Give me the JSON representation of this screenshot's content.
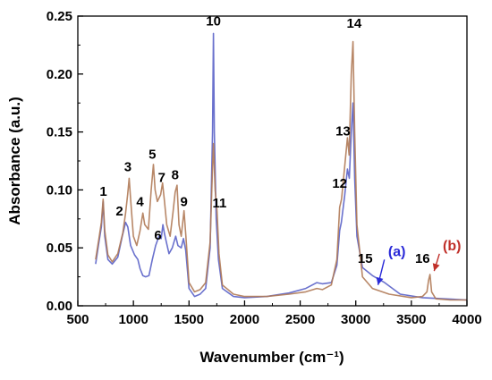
{
  "chart_data": {
    "type": "line",
    "xlabel": "Wavenumber (cm⁻¹)",
    "ylabel": "Absorbance (a.u.)",
    "xlim": [
      500,
      4000
    ],
    "ylim": [
      0,
      0.25
    ],
    "x_ticks": [
      500,
      1000,
      1500,
      2000,
      2500,
      3000,
      3500,
      4000
    ],
    "y_ticks": [
      0.0,
      0.05,
      0.1,
      0.15,
      0.2,
      0.25
    ],
    "x_tick_labels": [
      "500",
      "1000",
      "1500",
      "2000",
      "2500",
      "3000",
      "3500",
      "4000"
    ],
    "y_tick_labels": [
      "0.00",
      "0.05",
      "0.10",
      "0.15",
      "0.20",
      "0.25"
    ],
    "grid": false,
    "series": [
      {
        "name": "(a)",
        "color": "#5a62c8",
        "label_color": "#2a2ad8",
        "points": [
          [
            660,
            0.036
          ],
          [
            690,
            0.055
          ],
          [
            712,
            0.068
          ],
          [
            728,
            0.09
          ],
          [
            742,
            0.06
          ],
          [
            770,
            0.04
          ],
          [
            810,
            0.036
          ],
          [
            860,
            0.042
          ],
          [
            900,
            0.06
          ],
          [
            930,
            0.072
          ],
          [
            950,
            0.068
          ],
          [
            975,
            0.052
          ],
          [
            1010,
            0.044
          ],
          [
            1040,
            0.04
          ],
          [
            1060,
            0.032
          ],
          [
            1085,
            0.026
          ],
          [
            1110,
            0.025
          ],
          [
            1140,
            0.026
          ],
          [
            1170,
            0.04
          ],
          [
            1200,
            0.052
          ],
          [
            1230,
            0.06
          ],
          [
            1250,
            0.058
          ],
          [
            1265,
            0.07
          ],
          [
            1280,
            0.062
          ],
          [
            1320,
            0.045
          ],
          [
            1350,
            0.05
          ],
          [
            1380,
            0.06
          ],
          [
            1400,
            0.052
          ],
          [
            1430,
            0.05
          ],
          [
            1450,
            0.058
          ],
          [
            1470,
            0.048
          ],
          [
            1500,
            0.015
          ],
          [
            1550,
            0.008
          ],
          [
            1600,
            0.01
          ],
          [
            1650,
            0.015
          ],
          [
            1690,
            0.05
          ],
          [
            1712,
            0.15
          ],
          [
            1720,
            0.235
          ],
          [
            1728,
            0.15
          ],
          [
            1745,
            0.075
          ],
          [
            1765,
            0.04
          ],
          [
            1800,
            0.015
          ],
          [
            1900,
            0.008
          ],
          [
            2000,
            0.007
          ],
          [
            2200,
            0.008
          ],
          [
            2400,
            0.011
          ],
          [
            2550,
            0.015
          ],
          [
            2650,
            0.02
          ],
          [
            2700,
            0.019
          ],
          [
            2780,
            0.02
          ],
          [
            2830,
            0.035
          ],
          [
            2855,
            0.065
          ],
          [
            2870,
            0.072
          ],
          [
            2900,
            0.095
          ],
          [
            2925,
            0.118
          ],
          [
            2942,
            0.11
          ],
          [
            2960,
            0.15
          ],
          [
            2975,
            0.175
          ],
          [
            2990,
            0.11
          ],
          [
            3010,
            0.06
          ],
          [
            3060,
            0.033
          ],
          [
            3150,
            0.026
          ],
          [
            3260,
            0.02
          ],
          [
            3400,
            0.01
          ],
          [
            3600,
            0.007
          ],
          [
            3800,
            0.006
          ],
          [
            4000,
            0.005
          ]
        ]
      },
      {
        "name": "(b)",
        "color": "#b07a56",
        "label_color": "#c0302a",
        "points": [
          [
            660,
            0.04
          ],
          [
            690,
            0.058
          ],
          [
            712,
            0.072
          ],
          [
            728,
            0.092
          ],
          [
            742,
            0.065
          ],
          [
            770,
            0.044
          ],
          [
            810,
            0.038
          ],
          [
            860,
            0.045
          ],
          [
            905,
            0.063
          ],
          [
            930,
            0.08
          ],
          [
            948,
            0.096
          ],
          [
            962,
            0.11
          ],
          [
            978,
            0.088
          ],
          [
            1000,
            0.06
          ],
          [
            1030,
            0.052
          ],
          [
            1060,
            0.065
          ],
          [
            1085,
            0.08
          ],
          [
            1102,
            0.07
          ],
          [
            1135,
            0.066
          ],
          [
            1160,
            0.1
          ],
          [
            1180,
            0.122
          ],
          [
            1195,
            0.1
          ],
          [
            1215,
            0.09
          ],
          [
            1245,
            0.096
          ],
          [
            1262,
            0.106
          ],
          [
            1280,
            0.09
          ],
          [
            1300,
            0.07
          ],
          [
            1330,
            0.06
          ],
          [
            1355,
            0.08
          ],
          [
            1375,
            0.098
          ],
          [
            1392,
            0.104
          ],
          [
            1410,
            0.07
          ],
          [
            1430,
            0.06
          ],
          [
            1455,
            0.082
          ],
          [
            1472,
            0.06
          ],
          [
            1500,
            0.02
          ],
          [
            1550,
            0.012
          ],
          [
            1600,
            0.014
          ],
          [
            1650,
            0.02
          ],
          [
            1690,
            0.055
          ],
          [
            1712,
            0.12
          ],
          [
            1720,
            0.14
          ],
          [
            1735,
            0.1
          ],
          [
            1752,
            0.082
          ],
          [
            1770,
            0.045
          ],
          [
            1800,
            0.018
          ],
          [
            1900,
            0.01
          ],
          [
            2000,
            0.008
          ],
          [
            2200,
            0.008
          ],
          [
            2400,
            0.01
          ],
          [
            2550,
            0.012
          ],
          [
            2650,
            0.015
          ],
          [
            2700,
            0.014
          ],
          [
            2780,
            0.018
          ],
          [
            2830,
            0.04
          ],
          [
            2855,
            0.085
          ],
          [
            2872,
            0.092
          ],
          [
            2900,
            0.12
          ],
          [
            2925,
            0.145
          ],
          [
            2940,
            0.13
          ],
          [
            2960,
            0.2
          ],
          [
            2975,
            0.228
          ],
          [
            2990,
            0.15
          ],
          [
            3010,
            0.07
          ],
          [
            3060,
            0.025
          ],
          [
            3150,
            0.015
          ],
          [
            3300,
            0.01
          ],
          [
            3500,
            0.007
          ],
          [
            3600,
            0.008
          ],
          [
            3640,
            0.012
          ],
          [
            3655,
            0.022
          ],
          [
            3668,
            0.027
          ],
          [
            3682,
            0.012
          ],
          [
            3720,
            0.006
          ],
          [
            3850,
            0.005
          ],
          [
            4000,
            0.005
          ]
        ]
      }
    ],
    "peak_labels": [
      {
        "text": "1",
        "x": 730,
        "y": 0.095
      },
      {
        "text": "2",
        "x": 875,
        "y": 0.078
      },
      {
        "text": "3",
        "x": 950,
        "y": 0.116
      },
      {
        "text": "4",
        "x": 1060,
        "y": 0.086
      },
      {
        "text": "5",
        "x": 1170,
        "y": 0.127
      },
      {
        "text": "6",
        "x": 1220,
        "y": 0.057
      },
      {
        "text": "7",
        "x": 1255,
        "y": 0.107
      },
      {
        "text": "8",
        "x": 1375,
        "y": 0.109
      },
      {
        "text": "9",
        "x": 1455,
        "y": 0.086
      },
      {
        "text": "10",
        "x": 1720,
        "y": 0.242
      },
      {
        "text": "11",
        "x": 1775,
        "y": 0.085
      },
      {
        "text": "12",
        "x": 2855,
        "y": 0.102
      },
      {
        "text": "13",
        "x": 2885,
        "y": 0.147
      },
      {
        "text": "14",
        "x": 2985,
        "y": 0.24
      },
      {
        "text": "15",
        "x": 3085,
        "y": 0.037
      },
      {
        "text": "16",
        "x": 3600,
        "y": 0.037
      }
    ],
    "series_labels": [
      {
        "text": "(a)",
        "x": 3370,
        "y": 0.043,
        "color": "#2a2ad8",
        "arrow_to": [
          3200,
          0.018
        ]
      },
      {
        "text": "(b)",
        "x": 3865,
        "y": 0.048,
        "color": "#c0302a",
        "arrow_to": [
          3705,
          0.03
        ]
      }
    ]
  }
}
